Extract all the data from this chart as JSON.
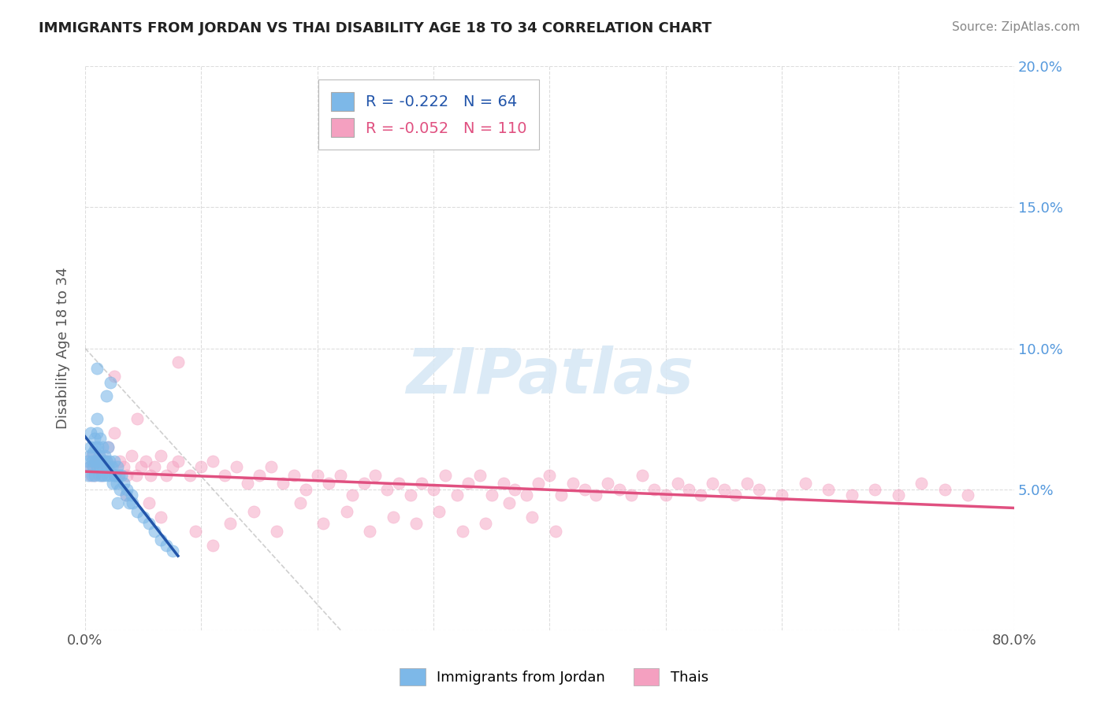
{
  "title": "IMMIGRANTS FROM JORDAN VS THAI DISABILITY AGE 18 TO 34 CORRELATION CHART",
  "source_text": "Source: ZipAtlas.com",
  "ylabel": "Disability Age 18 to 34",
  "xlim": [
    0.0,
    0.8
  ],
  "ylim": [
    0.0,
    0.2
  ],
  "jordan_R": -0.222,
  "jordan_N": 64,
  "thai_R": -0.052,
  "thai_N": 110,
  "jordan_color": "#7DB8E8",
  "thai_color": "#F4A0C0",
  "jordan_line_color": "#2255AA",
  "thai_line_color": "#E05080",
  "watermark": "ZIPatlas",
  "background_color": "#FFFFFF",
  "jordan_scatter_x": [
    0.002,
    0.003,
    0.004,
    0.004,
    0.005,
    0.005,
    0.006,
    0.006,
    0.007,
    0.007,
    0.008,
    0.008,
    0.009,
    0.009,
    0.01,
    0.01,
    0.01,
    0.011,
    0.011,
    0.012,
    0.012,
    0.013,
    0.013,
    0.014,
    0.014,
    0.015,
    0.015,
    0.016,
    0.016,
    0.017,
    0.018,
    0.018,
    0.019,
    0.02,
    0.02,
    0.021,
    0.022,
    0.023,
    0.024,
    0.025,
    0.025,
    0.026,
    0.027,
    0.028,
    0.029,
    0.03,
    0.031,
    0.033,
    0.035,
    0.036,
    0.038,
    0.04,
    0.041,
    0.045,
    0.05,
    0.055,
    0.06,
    0.065,
    0.07,
    0.075,
    0.018,
    0.022,
    0.01,
    0.028
  ],
  "jordan_scatter_y": [
    0.06,
    0.055,
    0.058,
    0.062,
    0.065,
    0.07,
    0.055,
    0.06,
    0.058,
    0.063,
    0.055,
    0.068,
    0.06,
    0.065,
    0.058,
    0.07,
    0.075,
    0.06,
    0.065,
    0.055,
    0.062,
    0.058,
    0.068,
    0.06,
    0.055,
    0.058,
    0.065,
    0.06,
    0.055,
    0.062,
    0.058,
    0.06,
    0.055,
    0.058,
    0.065,
    0.06,
    0.055,
    0.058,
    0.052,
    0.055,
    0.06,
    0.055,
    0.052,
    0.058,
    0.055,
    0.05,
    0.055,
    0.052,
    0.048,
    0.05,
    0.045,
    0.048,
    0.045,
    0.042,
    0.04,
    0.038,
    0.035,
    0.032,
    0.03,
    0.028,
    0.083,
    0.088,
    0.093,
    0.045
  ],
  "thai_scatter_x": [
    0.004,
    0.005,
    0.006,
    0.007,
    0.008,
    0.009,
    0.01,
    0.012,
    0.014,
    0.016,
    0.018,
    0.02,
    0.022,
    0.025,
    0.028,
    0.03,
    0.033,
    0.036,
    0.04,
    0.044,
    0.048,
    0.052,
    0.056,
    0.06,
    0.065,
    0.07,
    0.075,
    0.08,
    0.09,
    0.1,
    0.11,
    0.12,
    0.13,
    0.14,
    0.15,
    0.16,
    0.17,
    0.18,
    0.19,
    0.2,
    0.21,
    0.22,
    0.23,
    0.24,
    0.25,
    0.26,
    0.27,
    0.28,
    0.29,
    0.3,
    0.31,
    0.32,
    0.33,
    0.34,
    0.35,
    0.36,
    0.37,
    0.38,
    0.39,
    0.4,
    0.41,
    0.42,
    0.43,
    0.44,
    0.45,
    0.46,
    0.47,
    0.48,
    0.49,
    0.5,
    0.51,
    0.52,
    0.53,
    0.54,
    0.55,
    0.56,
    0.57,
    0.58,
    0.6,
    0.62,
    0.64,
    0.66,
    0.68,
    0.7,
    0.72,
    0.74,
    0.76,
    0.025,
    0.035,
    0.045,
    0.055,
    0.065,
    0.08,
    0.095,
    0.11,
    0.125,
    0.145,
    0.165,
    0.185,
    0.205,
    0.225,
    0.245,
    0.265,
    0.285,
    0.305,
    0.325,
    0.345,
    0.365,
    0.385,
    0.405
  ],
  "thai_scatter_y": [
    0.058,
    0.055,
    0.062,
    0.058,
    0.055,
    0.06,
    0.058,
    0.062,
    0.055,
    0.058,
    0.06,
    0.065,
    0.058,
    0.07,
    0.055,
    0.06,
    0.058,
    0.055,
    0.062,
    0.055,
    0.058,
    0.06,
    0.055,
    0.058,
    0.062,
    0.055,
    0.058,
    0.06,
    0.055,
    0.058,
    0.06,
    0.055,
    0.058,
    0.052,
    0.055,
    0.058,
    0.052,
    0.055,
    0.05,
    0.055,
    0.052,
    0.055,
    0.048,
    0.052,
    0.055,
    0.05,
    0.052,
    0.048,
    0.052,
    0.05,
    0.055,
    0.048,
    0.052,
    0.055,
    0.048,
    0.052,
    0.05,
    0.048,
    0.052,
    0.055,
    0.048,
    0.052,
    0.05,
    0.048,
    0.052,
    0.05,
    0.048,
    0.055,
    0.05,
    0.048,
    0.052,
    0.05,
    0.048,
    0.052,
    0.05,
    0.048,
    0.052,
    0.05,
    0.048,
    0.052,
    0.05,
    0.048,
    0.05,
    0.048,
    0.052,
    0.05,
    0.048,
    0.09,
    0.048,
    0.075,
    0.045,
    0.04,
    0.095,
    0.035,
    0.03,
    0.038,
    0.042,
    0.035,
    0.045,
    0.038,
    0.042,
    0.035,
    0.04,
    0.038,
    0.042,
    0.035,
    0.038,
    0.045,
    0.04,
    0.035
  ]
}
